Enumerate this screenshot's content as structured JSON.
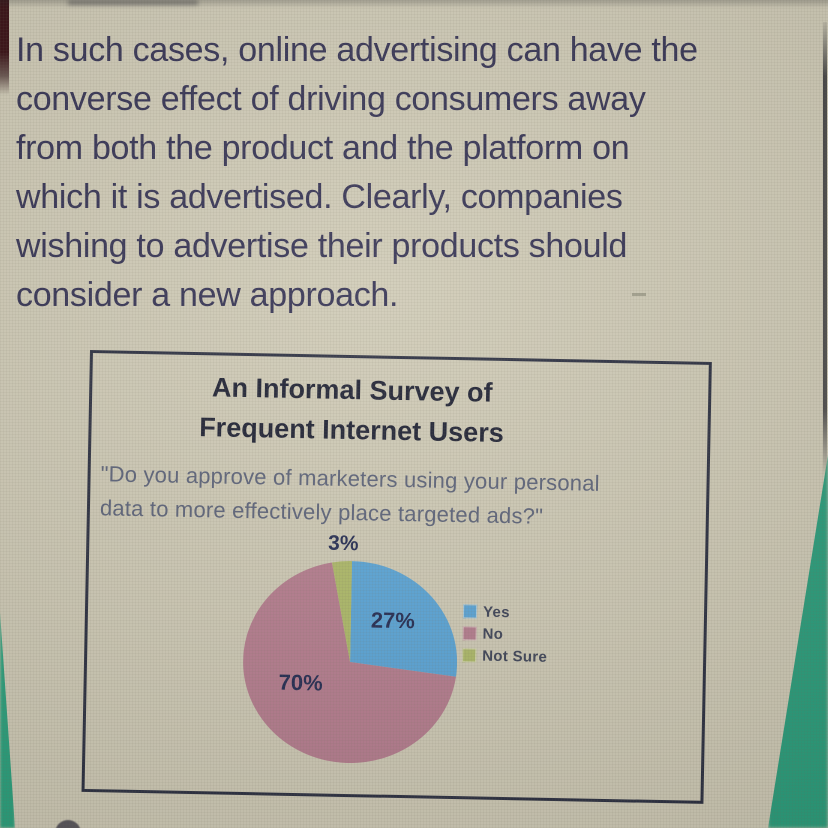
{
  "page": {
    "background_color": "#cfcab6",
    "text_color": "#302e51",
    "edge_green_color": "#27a07c",
    "edge_maroon_color": "#33090e"
  },
  "passage": {
    "lines": [
      "In such cases, online advertising can have the",
      "converse effect of driving consumers away",
      "from both the product and the platform on",
      "which it is advertised. Clearly, companies",
      "wishing to advertise their products should",
      "consider a new approach."
    ]
  },
  "figure": {
    "title_line1": "An Informal Survey of",
    "title_line2": "Frequent Internet Users",
    "question_line1": "\"Do you approve of marketers using your personal",
    "question_line2": "data to more effectively place targeted ads?\"",
    "border_color": "#272b3e"
  },
  "chart_data": {
    "type": "pie",
    "title": "An Informal Survey of Frequent Internet Users",
    "question": "\"Do you approve of marketers using your personal data to more effectively place targeted ads?\"",
    "categories": [
      "Yes",
      "No",
      "Not Sure"
    ],
    "values": [
      27,
      70,
      3
    ],
    "unit": "percent",
    "slice_labels": [
      "27%",
      "70%",
      "3%"
    ],
    "colors": [
      "#58a4d8",
      "#b57b8e",
      "#adb967"
    ],
    "legend_position": "right",
    "direction": "clockwise",
    "start_angle": "12 o'clock"
  }
}
